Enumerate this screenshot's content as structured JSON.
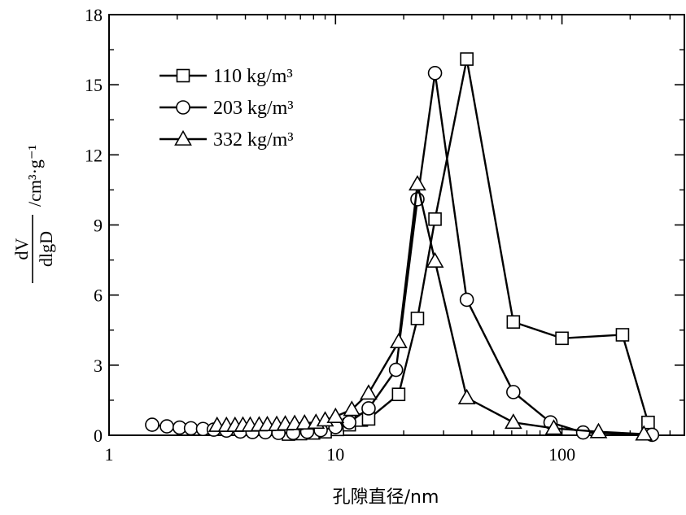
{
  "chart_data": {
    "type": "line",
    "title": "",
    "xlabel": "孔隙直径/nm",
    "ylabel": {
      "numerator": "dV",
      "denominator": "dlgD",
      "units": "/cm³·g⁻¹"
    },
    "x_scale": "log",
    "xlim": [
      1,
      350
    ],
    "ylim": [
      0,
      18
    ],
    "x_ticks": [
      {
        "value": 1,
        "label": "1"
      },
      {
        "value": 10,
        "label": "10"
      },
      {
        "value": 100,
        "label": "100"
      }
    ],
    "y_ticks": [
      {
        "value": 0,
        "label": "0"
      },
      {
        "value": 3,
        "label": "3"
      },
      {
        "value": 6,
        "label": "6"
      },
      {
        "value": 9,
        "label": "9"
      },
      {
        "value": 12,
        "label": "12"
      },
      {
        "value": 15,
        "label": "15"
      },
      {
        "value": 18,
        "label": "18"
      }
    ],
    "grid": false,
    "legend_position": "top-left",
    "series": [
      {
        "name": "110 kg/m³",
        "marker": "square",
        "color": "#000000",
        "points": [
          [
            6.2,
            0.05
          ],
          [
            7.0,
            0.07
          ],
          [
            8.0,
            0.1
          ],
          [
            9.0,
            0.15
          ],
          [
            10.2,
            0.25
          ],
          [
            11.5,
            0.45
          ],
          [
            13.0,
            0.65
          ],
          [
            14.0,
            0.7
          ],
          [
            19.0,
            1.75
          ],
          [
            23.0,
            5.0
          ],
          [
            27.5,
            9.25
          ],
          [
            38.0,
            16.1
          ],
          [
            61.0,
            4.85
          ],
          [
            100.0,
            4.15
          ],
          [
            185.0,
            4.3
          ],
          [
            240.0,
            0.55
          ]
        ]
      },
      {
        "name": "203 kg/m³",
        "marker": "circle",
        "color": "#000000",
        "points": [
          [
            1.55,
            0.45
          ],
          [
            1.8,
            0.38
          ],
          [
            2.05,
            0.33
          ],
          [
            2.3,
            0.3
          ],
          [
            2.6,
            0.27
          ],
          [
            2.9,
            0.24
          ],
          [
            3.3,
            0.2
          ],
          [
            3.8,
            0.16
          ],
          [
            4.3,
            0.14
          ],
          [
            4.9,
            0.13
          ],
          [
            5.6,
            0.1
          ],
          [
            6.5,
            0.1
          ],
          [
            7.5,
            0.15
          ],
          [
            8.6,
            0.22
          ],
          [
            10.0,
            0.35
          ],
          [
            11.5,
            0.55
          ],
          [
            14.0,
            1.15
          ],
          [
            18.5,
            2.8
          ],
          [
            23.0,
            10.1
          ],
          [
            27.5,
            15.5
          ],
          [
            38.0,
            5.8
          ],
          [
            61.0,
            1.85
          ],
          [
            89.0,
            0.55
          ],
          [
            124.0,
            0.12
          ],
          [
            250.0,
            0.02
          ]
        ]
      },
      {
        "name": "332 kg/m³",
        "marker": "triangle",
        "color": "#000000",
        "points": [
          [
            3.0,
            0.42
          ],
          [
            3.3,
            0.42
          ],
          [
            3.6,
            0.42
          ],
          [
            3.9,
            0.43
          ],
          [
            4.2,
            0.43
          ],
          [
            4.6,
            0.44
          ],
          [
            5.0,
            0.45
          ],
          [
            5.5,
            0.46
          ],
          [
            6.0,
            0.48
          ],
          [
            6.6,
            0.5
          ],
          [
            7.3,
            0.52
          ],
          [
            8.2,
            0.55
          ],
          [
            9.0,
            0.65
          ],
          [
            10.0,
            0.8
          ],
          [
            11.8,
            1.1
          ],
          [
            14.0,
            1.8
          ],
          [
            19.0,
            4.0
          ],
          [
            23.0,
            10.75
          ],
          [
            27.5,
            7.45
          ],
          [
            38.0,
            1.6
          ],
          [
            61.0,
            0.55
          ],
          [
            92.0,
            0.3
          ],
          [
            145.0,
            0.15
          ],
          [
            230.0,
            0.05
          ]
        ]
      }
    ]
  }
}
